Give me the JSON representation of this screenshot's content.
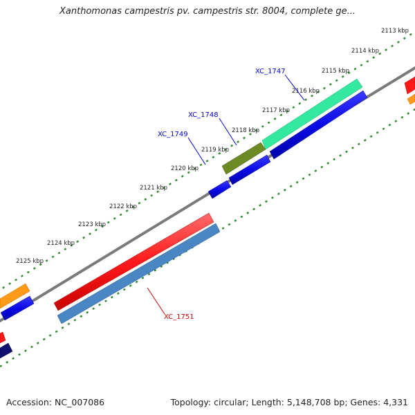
{
  "title": "Xanthomonas campestris pv. campestris str. 8004, complete ge...",
  "footer": {
    "accession_label": "Accession:",
    "accession": "NC_007086",
    "topology": "Topology: circular; Length: 5,148,708 bp; Genes: 4,331"
  },
  "scale": {
    "unit": "kbp",
    "ticks": [
      {
        "kbp": 2113,
        "label": "2113 kbp"
      },
      {
        "kbp": 2114,
        "label": "2114 kbp"
      },
      {
        "kbp": 2115,
        "label": "2115 kbp"
      },
      {
        "kbp": 2116,
        "label": "2116 kbp"
      },
      {
        "kbp": 2117,
        "label": "2117 kbp"
      },
      {
        "kbp": 2118,
        "label": "2118 kbp"
      },
      {
        "kbp": 2119,
        "label": "2119 kbp"
      },
      {
        "kbp": 2120,
        "label": "2120 kbp"
      },
      {
        "kbp": 2121,
        "label": "2121 kbp"
      },
      {
        "kbp": 2122,
        "label": "2122 kbp"
      },
      {
        "kbp": 2123,
        "label": "2123 kbp"
      },
      {
        "kbp": 2124,
        "label": "2124 kbp"
      },
      {
        "kbp": 2125,
        "label": "2125 kbp"
      }
    ]
  },
  "gene_labels": [
    {
      "name": "XC_1747",
      "color": "#0000cc"
    },
    {
      "name": "XC_1748",
      "color": "#0000cc"
    },
    {
      "name": "XC_1749",
      "color": "#0000cc"
    },
    {
      "name": "XC_1751",
      "color": "#cc0000"
    }
  ],
  "colors": {
    "backbone": "#7a7a7a",
    "ruler": "#2e8b2e",
    "gene_red": "#ff1a1a",
    "gene_blue": "#0a0ae6",
    "gene_green": "#33e8a0",
    "gene_olive": "#6b8a23",
    "gene_steelblue": "#4a86c4",
    "gene_orange": "#ff9a1a",
    "gene_navy": "#101070"
  }
}
